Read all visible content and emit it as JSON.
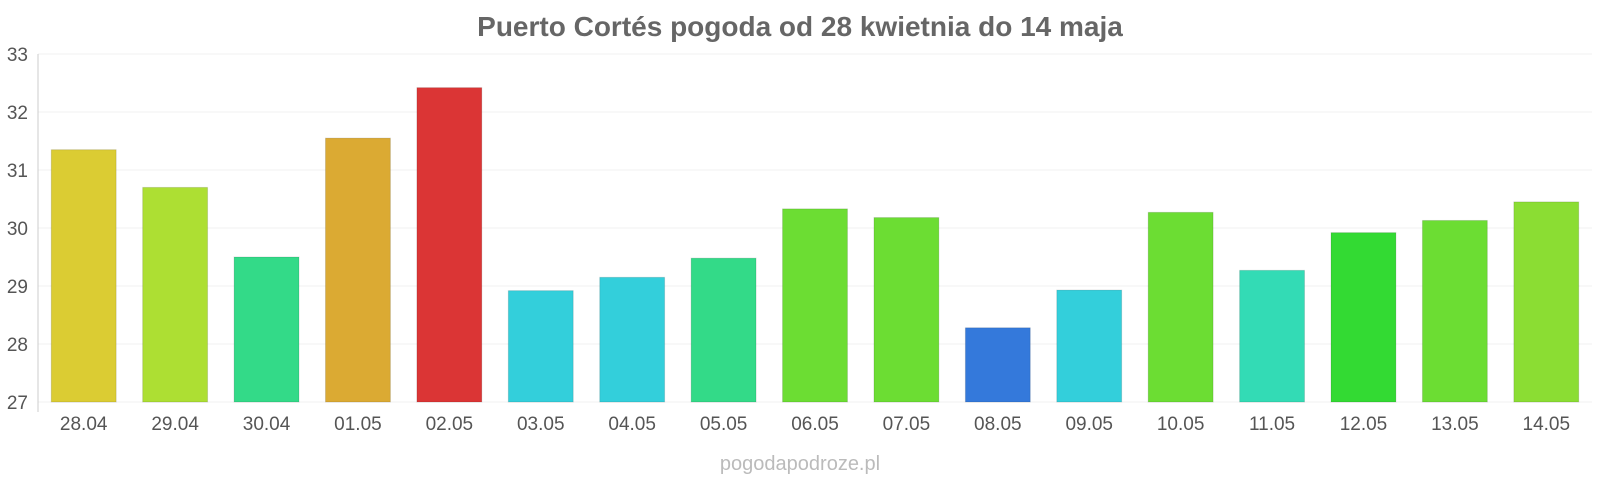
{
  "chart_data": {
    "type": "bar",
    "title": "Puerto Cortés pogoda od 28 kwietnia do 14 maja",
    "xlabel": "",
    "ylabel": "",
    "ylim": [
      27,
      33
    ],
    "yticks": [
      "27",
      "28",
      "29",
      "30",
      "31",
      "32",
      "33"
    ],
    "grid": true,
    "categories": [
      "28.04",
      "29.04",
      "30.04",
      "01.05",
      "02.05",
      "03.05",
      "04.05",
      "05.05",
      "06.05",
      "07.05",
      "08.05",
      "09.05",
      "10.05",
      "11.05",
      "12.05",
      "13.05",
      "14.05"
    ],
    "values": [
      31.35,
      30.7,
      29.5,
      31.55,
      32.42,
      28.92,
      29.15,
      29.48,
      30.33,
      30.18,
      28.28,
      28.93,
      30.27,
      29.27,
      29.92,
      30.13,
      30.45
    ],
    "colors": [
      "#dbcc33",
      "#addf33",
      "#33da88",
      "#dbaa33",
      "#db3535",
      "#33cfdb",
      "#33cfdb",
      "#33da88",
      "#6cdd33",
      "#6cdd33",
      "#3479db",
      "#33cfdb",
      "#6cdd33",
      "#33dbb5",
      "#33da33",
      "#6cdd33",
      "#8bdd33"
    ]
  },
  "watermark": "pogodapodroze.pl"
}
